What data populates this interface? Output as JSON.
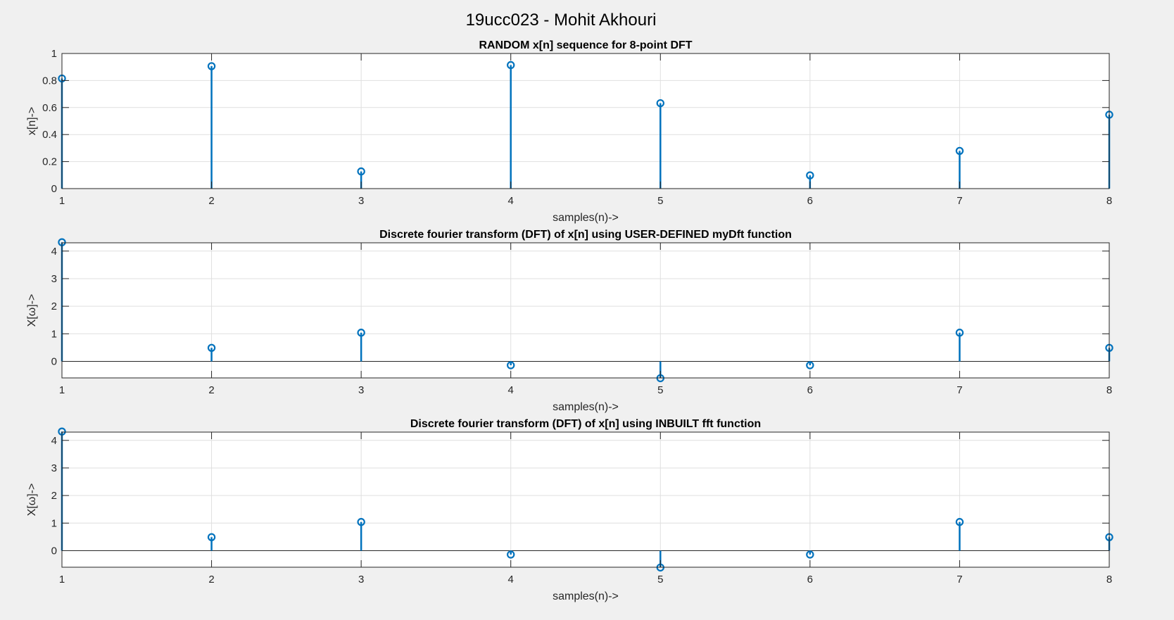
{
  "figure": {
    "suptitle": "19ucc023 - Mohit Akhouri",
    "stem_color": "#0072bd"
  },
  "chart_data": [
    {
      "type": "stem",
      "title": "RANDOM x[n] sequence for 8-point DFT",
      "xlabel": "samples(n)->",
      "ylabel": "x[n]->",
      "x": [
        1,
        2,
        3,
        4,
        5,
        6,
        7,
        8
      ],
      "values": [
        0.815,
        0.906,
        0.127,
        0.914,
        0.632,
        0.098,
        0.279,
        0.547
      ],
      "xlim": [
        1,
        8
      ],
      "ylim": [
        0,
        1
      ],
      "xticks": [
        1,
        2,
        3,
        4,
        5,
        6,
        7,
        8
      ],
      "yticks": [
        0,
        0.2,
        0.4,
        0.6,
        0.8,
        1
      ],
      "yticklabels": [
        "0",
        "0.2",
        "0.4",
        "0.6",
        "0.8",
        "1"
      ],
      "grid": true
    },
    {
      "type": "stem",
      "title": "Discrete fourier transform (DFT) of x[n] using USER-DEFINED myDft function",
      "xlabel": "samples(n)->",
      "ylabel": "X[ω]->",
      "x": [
        1,
        2,
        3,
        4,
        5,
        6,
        7,
        8
      ],
      "values": [
        4.32,
        0.49,
        1.04,
        -0.14,
        -0.61,
        -0.14,
        1.04,
        0.49
      ],
      "xlim": [
        1,
        8
      ],
      "ylim": [
        -0.6,
        4.3
      ],
      "xticks": [
        1,
        2,
        3,
        4,
        5,
        6,
        7,
        8
      ],
      "yticks": [
        0,
        1,
        2,
        3,
        4
      ],
      "yticklabels": [
        "0",
        "1",
        "2",
        "3",
        "4"
      ],
      "grid": true
    },
    {
      "type": "stem",
      "title": "Discrete fourier transform (DFT) of x[n] using INBUILT fft function",
      "xlabel": "samples(n)->",
      "ylabel": "X[ω]->",
      "x": [
        1,
        2,
        3,
        4,
        5,
        6,
        7,
        8
      ],
      "values": [
        4.32,
        0.49,
        1.04,
        -0.14,
        -0.61,
        -0.14,
        1.04,
        0.49
      ],
      "xlim": [
        1,
        8
      ],
      "ylim": [
        -0.6,
        4.3
      ],
      "xticks": [
        1,
        2,
        3,
        4,
        5,
        6,
        7,
        8
      ],
      "yticks": [
        0,
        1,
        2,
        3,
        4
      ],
      "yticklabels": [
        "0",
        "1",
        "2",
        "3",
        "4"
      ],
      "grid": true
    }
  ]
}
